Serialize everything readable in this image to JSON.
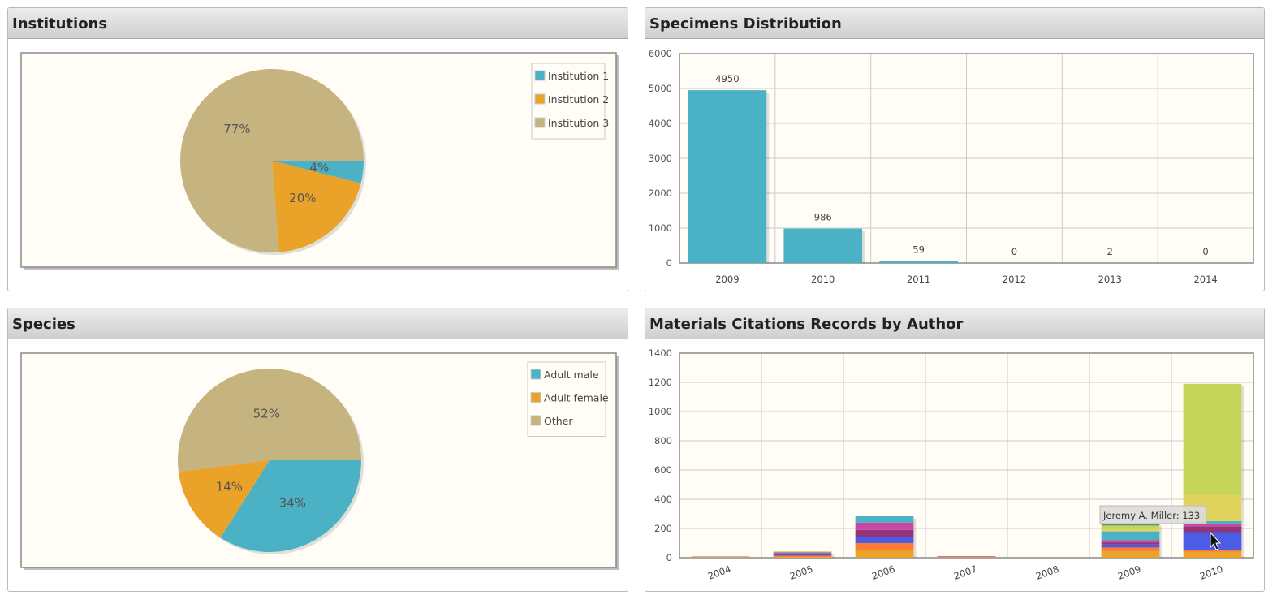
{
  "panels": {
    "institutions": {
      "title": "Institutions"
    },
    "specimens": {
      "title": "Specimens Distribution"
    },
    "species": {
      "title": "Species"
    },
    "citations": {
      "title": "Materials Citations Records by Author"
    }
  },
  "colors": {
    "teal": "#4bb2c5",
    "orange": "#eaa228",
    "tan": "#c5b47f",
    "plot_bg": "#fffdf6"
  },
  "chart_data": [
    {
      "type": "pie",
      "panel": "institutions",
      "categories": [
        "Institution 1",
        "Institution 2",
        "Institution 3"
      ],
      "values": [
        4,
        20,
        77
      ],
      "labels": [
        "4%",
        "20%",
        "77%"
      ],
      "colors": [
        "#4bb2c5",
        "#eaa228",
        "#c5b47f"
      ],
      "legend": "top-right"
    },
    {
      "type": "bar",
      "panel": "specimens",
      "categories": [
        "2009",
        "2010",
        "2011",
        "2012",
        "2013",
        "2014"
      ],
      "values": [
        4950,
        986,
        59,
        0,
        2,
        0
      ],
      "ylim": [
        0,
        6000
      ],
      "yticks": [
        0,
        1000,
        2000,
        3000,
        4000,
        5000,
        6000
      ],
      "color": "#4bb2c5",
      "grid": true
    },
    {
      "type": "pie",
      "panel": "species",
      "categories": [
        "Adult male",
        "Adult female",
        "Other"
      ],
      "values": [
        34,
        14,
        52
      ],
      "labels": [
        "34%",
        "14%",
        "52%"
      ],
      "colors": [
        "#4bb2c5",
        "#eaa228",
        "#c5b47f"
      ],
      "legend": "top-right"
    },
    {
      "type": "bar",
      "stacked": true,
      "panel": "citations",
      "categories": [
        "2004",
        "2005",
        "2006",
        "2007",
        "2008",
        "2009",
        "2010"
      ],
      "ylim": [
        0,
        1400
      ],
      "yticks": [
        0,
        200,
        400,
        600,
        800,
        1000,
        1200,
        1400
      ],
      "grid": true,
      "stack_colors": [
        "#eaa228",
        "#fd7b33",
        "#4b5de4",
        "#953579",
        "#c747a3",
        "#4bb2c5",
        "#e1d45c",
        "#c5d558",
        "#579575",
        "#839557",
        "#958c12",
        "#d8b83f",
        "#ff5800",
        "#0085cc",
        "#b3a3e0",
        "#61a550"
      ],
      "stacks": [
        [
          4,
          3,
          2
        ],
        [
          6,
          8,
          5,
          10,
          6,
          5,
          4
        ],
        [
          50,
          50,
          40,
          50,
          50,
          45
        ],
        [
          3,
          3,
          2,
          2
        ],
        [],
        [
          45,
          25,
          20,
          15,
          15,
          60,
          15,
          25,
          10,
          5
        ],
        [
          40,
          10,
          125,
          40,
          15,
          20,
          180,
          760
        ]
      ],
      "tooltip": "Jeremy A. Miller: 133"
    }
  ]
}
